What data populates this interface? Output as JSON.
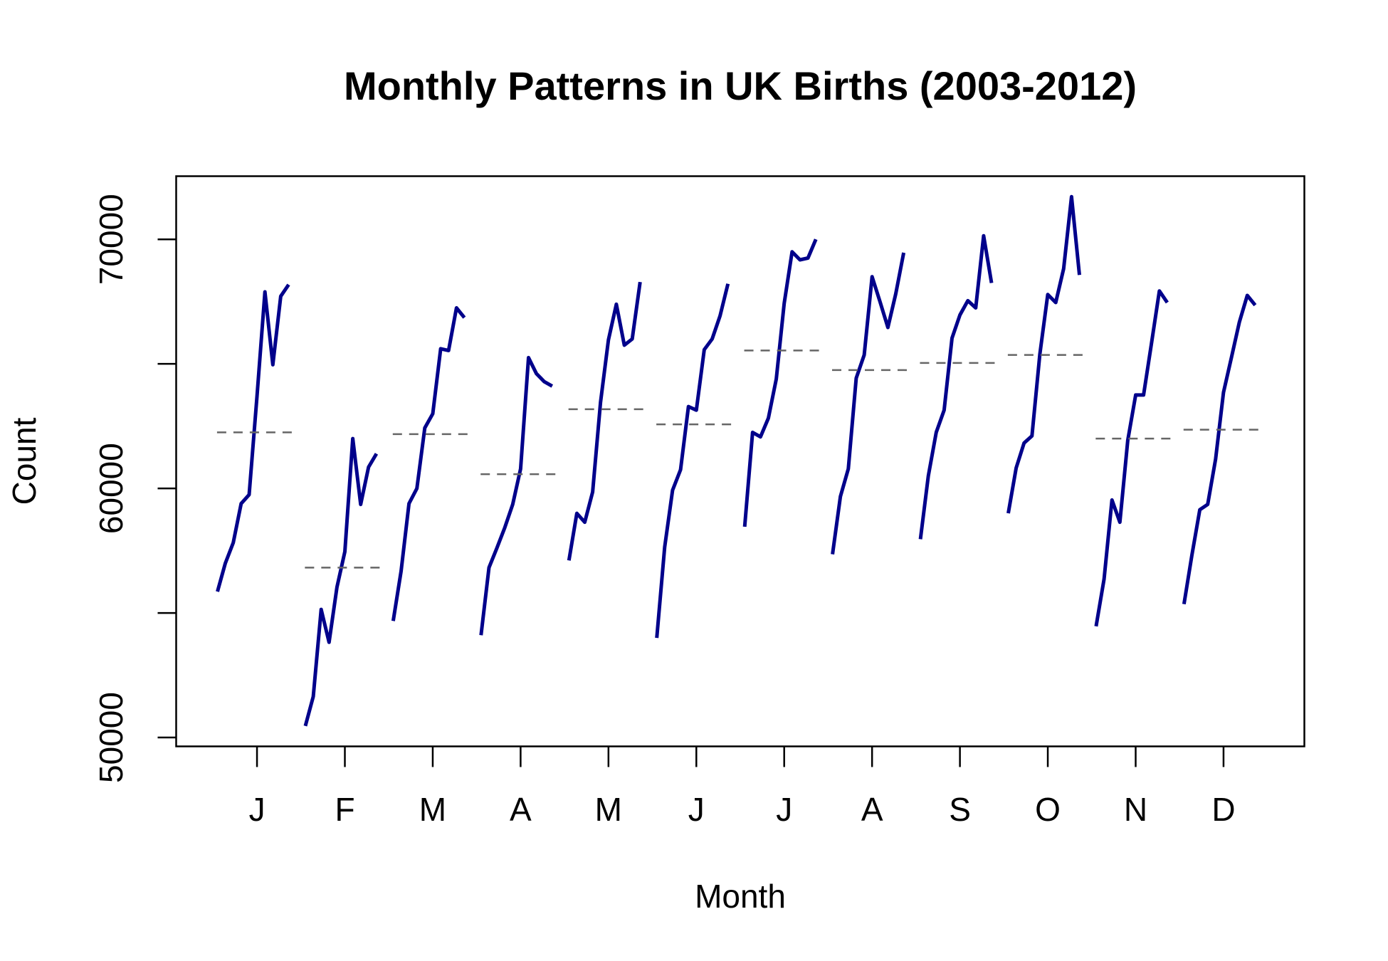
{
  "chart_data": {
    "type": "monthplot",
    "title": "Monthly Patterns in UK Births (2003-2012)",
    "x_label": "Month",
    "y_label": "Count",
    "categories": [
      "J",
      "F",
      "M",
      "A",
      "M",
      "J",
      "J",
      "A",
      "S",
      "O",
      "N",
      "D"
    ],
    "values": [
      [
        55857,
        57000,
        57821,
        59393,
        59750,
        63714,
        67893,
        64964,
        67714,
        68179
      ],
      [
        50464,
        51643,
        55143,
        53821,
        56036,
        57464,
        62000,
        59357,
        60857,
        61393
      ],
      [
        54679,
        56679,
        59393,
        60000,
        62429,
        63000,
        65607,
        65536,
        67250,
        66857
      ],
      [
        54107,
        56821,
        57607,
        58429,
        59357,
        60786,
        65250,
        64607,
        64286,
        64107
      ],
      [
        57107,
        59000,
        58643,
        59857,
        63464,
        65964,
        67393,
        65750,
        66000,
        68286
      ],
      [
        54000,
        57643,
        59929,
        60750,
        63286,
        63143,
        65571,
        66000,
        66929,
        68214
      ],
      [
        58464,
        62250,
        62071,
        62821,
        64393,
        67429,
        69500,
        69179,
        69250,
        70000
      ],
      [
        57357,
        59679,
        60786,
        64429,
        65357,
        68500,
        67500,
        66464,
        67821,
        69464
      ],
      [
        57964,
        60500,
        62250,
        63143,
        66036,
        66964,
        67536,
        67250,
        70143,
        68250
      ],
      [
        59000,
        60821,
        61821,
        62107,
        65393,
        67786,
        67464,
        68821,
        71714,
        68571
      ],
      [
        54464,
        56357,
        59536,
        58643,
        61929,
        63750,
        63750,
        65821,
        67929,
        67464
      ],
      [
        55357,
        57321,
        59143,
        59357,
        61179,
        63857,
        65250,
        66679,
        67750,
        67357
      ]
    ],
    "means": [
      62250,
      56821,
      62179,
      60571,
      63179,
      62571,
      65536,
      64750,
      65036,
      65357,
      62000,
      62357
    ],
    "color": "#00008b",
    "mean_color": "#666666",
    "ylim": [
      49643,
      72536
    ],
    "yticks": [
      50000,
      60000,
      70000
    ],
    "yminor_ticks": [
      55000,
      65000
    ]
  }
}
